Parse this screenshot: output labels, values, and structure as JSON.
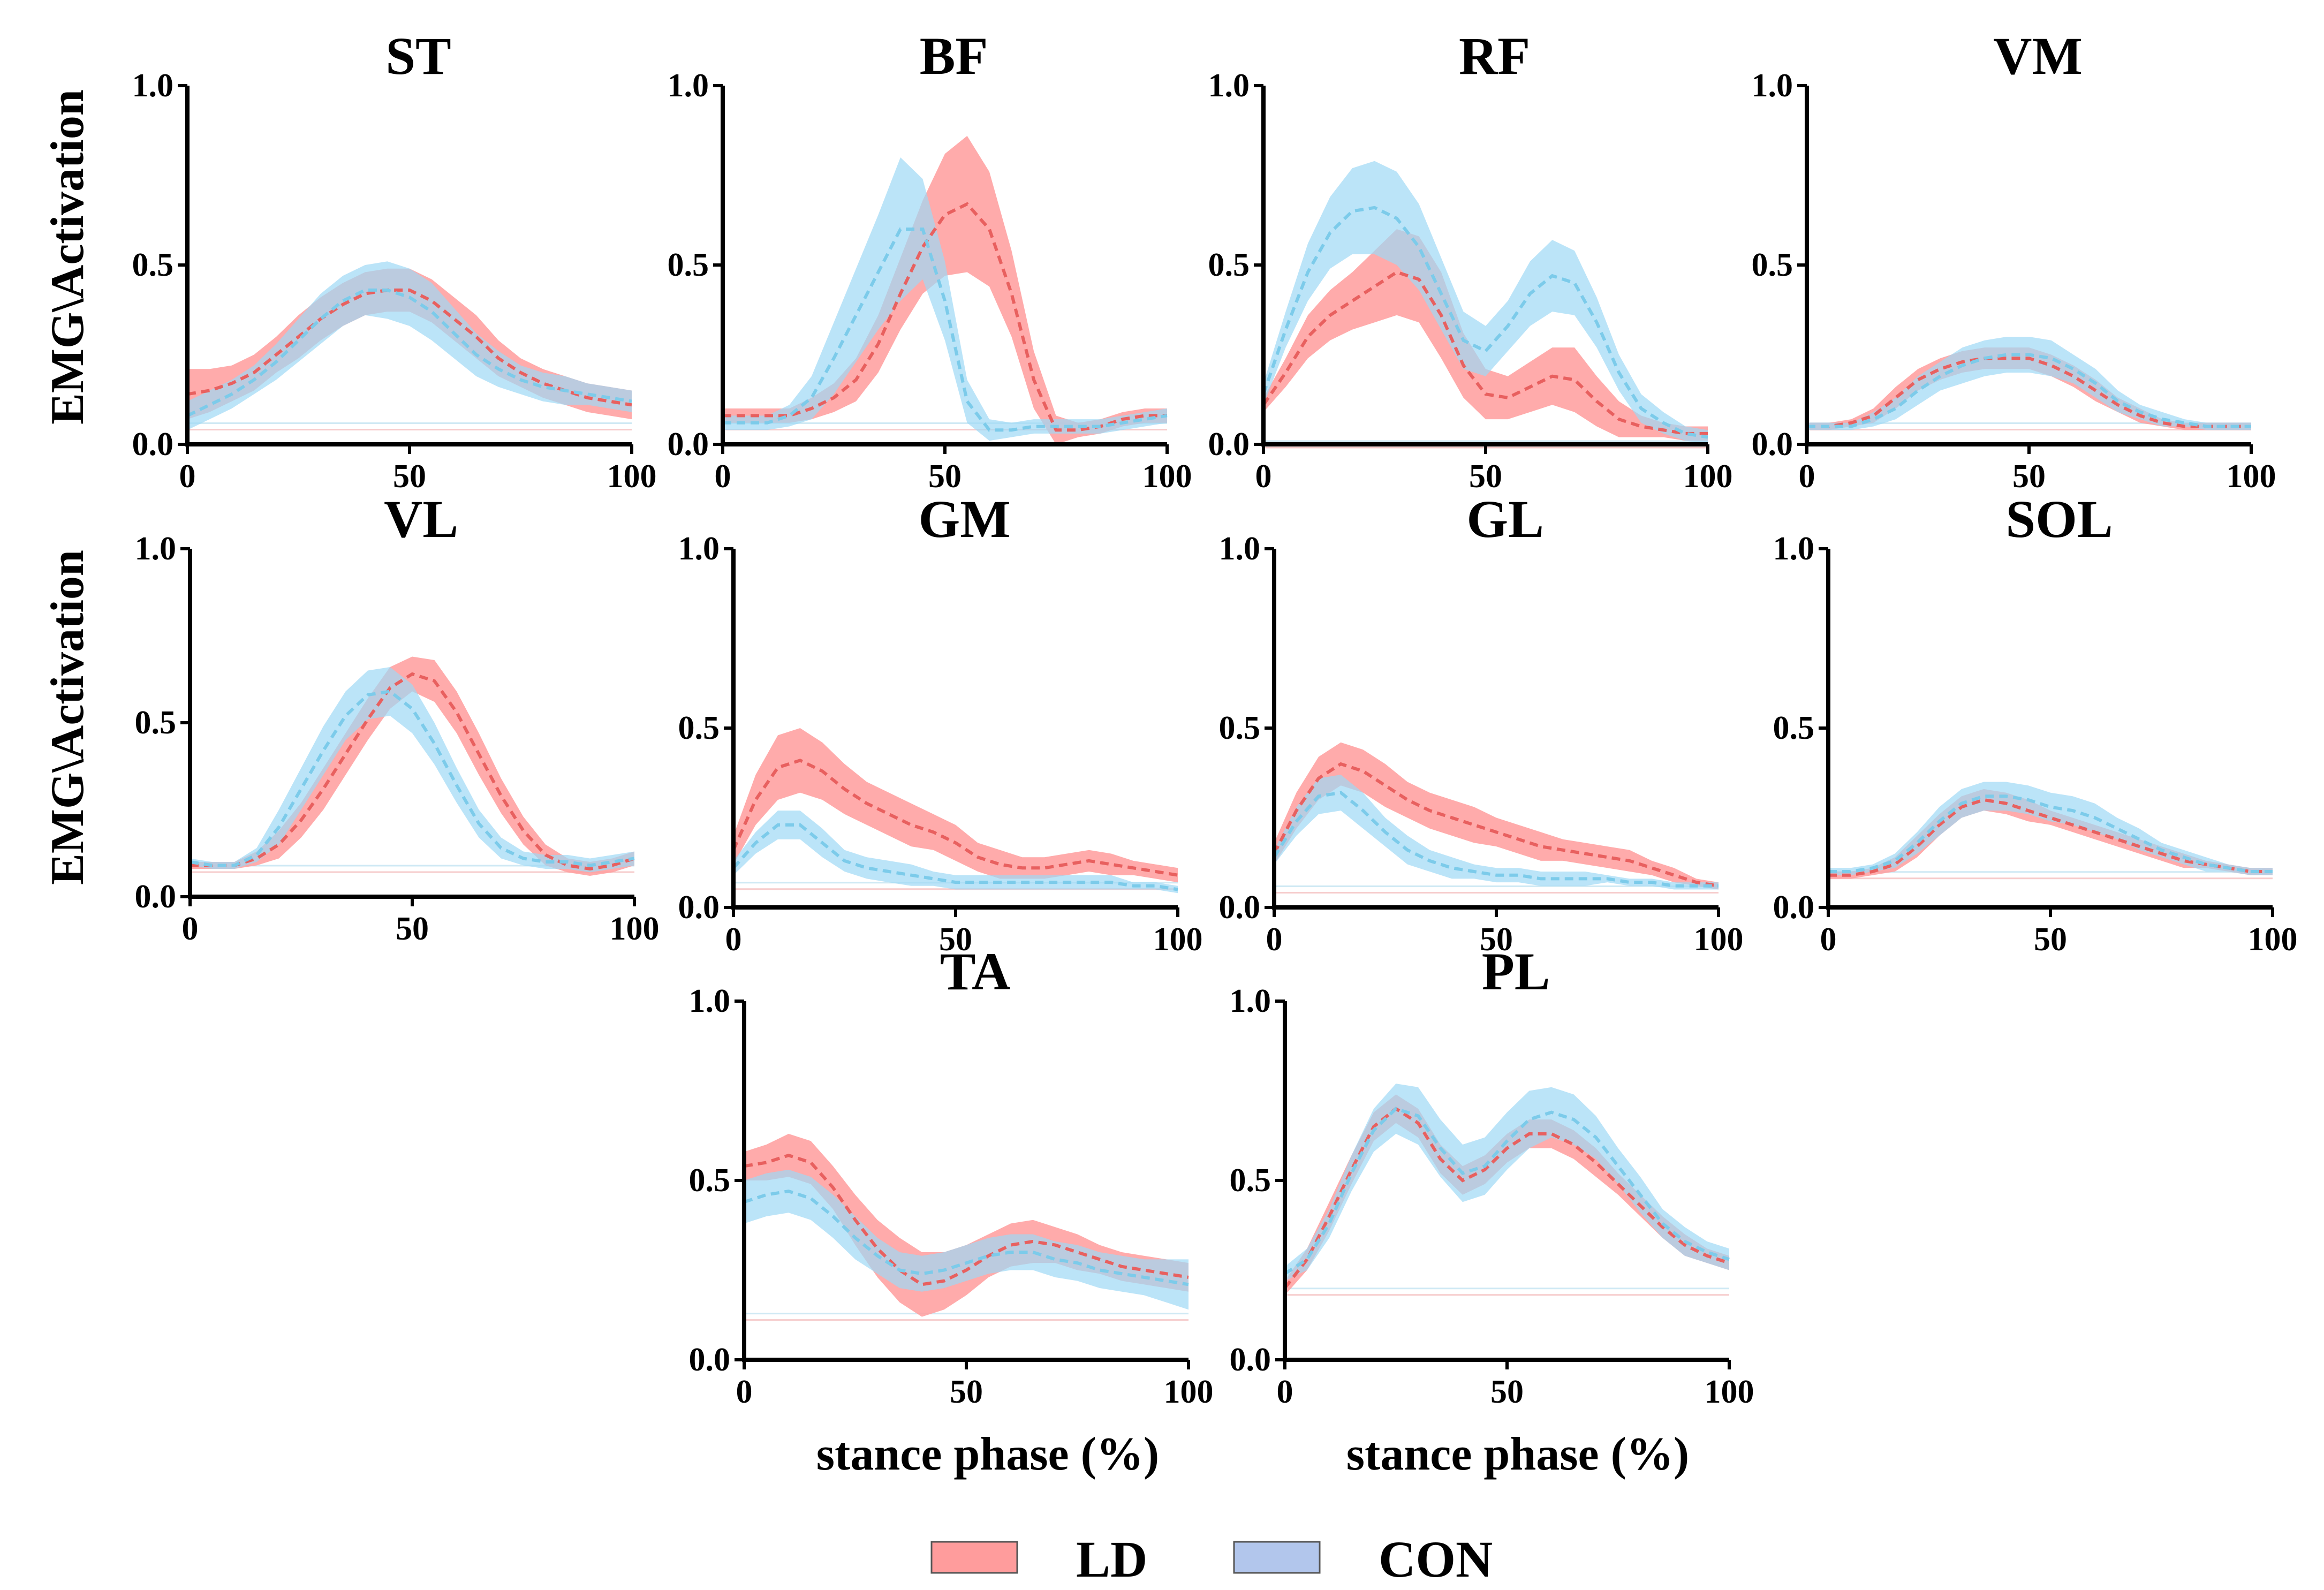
{
  "chart_data": {
    "type": "line",
    "y_axis_label": "EMG\\Activation",
    "x_axis_label": "stance phase (%)",
    "xlim": [
      0,
      100
    ],
    "ylim": [
      0,
      1
    ],
    "x_ticks": [
      "0",
      "50",
      "100"
    ],
    "y_ticks": [
      "0.0",
      "0.5",
      "1.0"
    ],
    "x": [
      0,
      5,
      10,
      15,
      20,
      25,
      30,
      35,
      40,
      45,
      50,
      55,
      60,
      65,
      70,
      75,
      80,
      85,
      90,
      95,
      100
    ],
    "legend": [
      {
        "label": "LD",
        "color": "#ff9c9c",
        "line_color": "#e8605f"
      },
      {
        "label": "CON",
        "color": "#b2c6ec",
        "line_color": "#7ccbea",
        "band_color": "#9ed8f5"
      }
    ],
    "panels": [
      {
        "title": "ST",
        "LD": {
          "mean": [
            0.14,
            0.15,
            0.17,
            0.2,
            0.25,
            0.3,
            0.35,
            0.39,
            0.42,
            0.43,
            0.43,
            0.4,
            0.35,
            0.3,
            0.24,
            0.2,
            0.17,
            0.15,
            0.13,
            0.12,
            0.11
          ],
          "sd": [
            0.07,
            0.06,
            0.05,
            0.05,
            0.05,
            0.06,
            0.06,
            0.06,
            0.06,
            0.06,
            0.06,
            0.06,
            0.06,
            0.06,
            0.05,
            0.04,
            0.04,
            0.04,
            0.04,
            0.04,
            0.04
          ]
        },
        "CON": {
          "mean": [
            0.08,
            0.11,
            0.14,
            0.18,
            0.23,
            0.29,
            0.35,
            0.4,
            0.43,
            0.43,
            0.41,
            0.37,
            0.31,
            0.25,
            0.21,
            0.18,
            0.16,
            0.15,
            0.14,
            0.13,
            0.12
          ],
          "sd": [
            0.04,
            0.04,
            0.04,
            0.04,
            0.05,
            0.06,
            0.07,
            0.07,
            0.07,
            0.08,
            0.08,
            0.08,
            0.07,
            0.06,
            0.05,
            0.04,
            0.04,
            0.04,
            0.03,
            0.03,
            0.03
          ]
        }
      },
      {
        "title": "BF",
        "LD": {
          "mean": [
            0.08,
            0.08,
            0.08,
            0.08,
            0.1,
            0.13,
            0.18,
            0.28,
            0.42,
            0.55,
            0.64,
            0.67,
            0.6,
            0.42,
            0.18,
            0.04,
            0.04,
            0.05,
            0.07,
            0.08,
            0.08
          ],
          "sd": [
            0.02,
            0.02,
            0.02,
            0.02,
            0.03,
            0.04,
            0.06,
            0.08,
            0.1,
            0.13,
            0.17,
            0.19,
            0.16,
            0.12,
            0.08,
            0.04,
            0.02,
            0.02,
            0.02,
            0.02,
            0.02
          ]
        },
        "CON": {
          "mean": [
            0.06,
            0.06,
            0.06,
            0.08,
            0.13,
            0.24,
            0.36,
            0.48,
            0.6,
            0.6,
            0.4,
            0.12,
            0.04,
            0.04,
            0.05,
            0.05,
            0.05,
            0.05,
            0.06,
            0.07,
            0.08
          ],
          "sd": [
            0.02,
            0.02,
            0.02,
            0.03,
            0.06,
            0.1,
            0.13,
            0.16,
            0.2,
            0.14,
            0.11,
            0.06,
            0.03,
            0.02,
            0.02,
            0.02,
            0.02,
            0.02,
            0.02,
            0.02,
            0.02
          ]
        }
      },
      {
        "title": "RF",
        "LD": {
          "mean": [
            0.11,
            0.2,
            0.3,
            0.36,
            0.4,
            0.44,
            0.48,
            0.46,
            0.36,
            0.22,
            0.14,
            0.13,
            0.16,
            0.19,
            0.18,
            0.12,
            0.07,
            0.05,
            0.04,
            0.03,
            0.03
          ],
          "sd": [
            0.02,
            0.04,
            0.06,
            0.07,
            0.08,
            0.1,
            0.12,
            0.12,
            0.12,
            0.09,
            0.07,
            0.06,
            0.07,
            0.08,
            0.09,
            0.07,
            0.05,
            0.03,
            0.02,
            0.02,
            0.02
          ]
        },
        "CON": {
          "mean": [
            0.14,
            0.32,
            0.48,
            0.59,
            0.65,
            0.66,
            0.63,
            0.55,
            0.42,
            0.29,
            0.26,
            0.33,
            0.42,
            0.47,
            0.45,
            0.34,
            0.2,
            0.1,
            0.06,
            0.03,
            0.02
          ],
          "sd": [
            0.03,
            0.05,
            0.08,
            0.1,
            0.12,
            0.13,
            0.13,
            0.12,
            0.1,
            0.08,
            0.07,
            0.07,
            0.09,
            0.1,
            0.09,
            0.07,
            0.05,
            0.04,
            0.03,
            0.02,
            0.02
          ]
        }
      },
      {
        "title": "VM",
        "LD": {
          "mean": [
            0.05,
            0.05,
            0.06,
            0.08,
            0.13,
            0.18,
            0.21,
            0.23,
            0.24,
            0.24,
            0.24,
            0.22,
            0.19,
            0.15,
            0.11,
            0.08,
            0.06,
            0.05,
            0.05,
            0.05,
            0.05
          ],
          "sd": [
            0.01,
            0.01,
            0.01,
            0.02,
            0.03,
            0.03,
            0.03,
            0.03,
            0.03,
            0.03,
            0.03,
            0.03,
            0.03,
            0.03,
            0.02,
            0.02,
            0.01,
            0.01,
            0.01,
            0.01,
            0.01
          ]
        },
        "CON": {
          "mean": [
            0.05,
            0.05,
            0.05,
            0.07,
            0.1,
            0.15,
            0.19,
            0.22,
            0.24,
            0.25,
            0.25,
            0.24,
            0.21,
            0.17,
            0.12,
            0.09,
            0.07,
            0.06,
            0.05,
            0.05,
            0.05
          ],
          "sd": [
            0.01,
            0.01,
            0.01,
            0.02,
            0.03,
            0.04,
            0.04,
            0.05,
            0.05,
            0.05,
            0.05,
            0.05,
            0.04,
            0.04,
            0.03,
            0.02,
            0.02,
            0.01,
            0.01,
            0.01,
            0.01
          ]
        }
      },
      {
        "title": "VL",
        "LD": {
          "mean": [
            0.09,
            0.09,
            0.09,
            0.11,
            0.15,
            0.22,
            0.31,
            0.41,
            0.51,
            0.6,
            0.64,
            0.62,
            0.53,
            0.41,
            0.29,
            0.19,
            0.12,
            0.09,
            0.08,
            0.09,
            0.11
          ],
          "sd": [
            0.01,
            0.01,
            0.01,
            0.02,
            0.04,
            0.05,
            0.06,
            0.06,
            0.06,
            0.06,
            0.05,
            0.06,
            0.06,
            0.06,
            0.05,
            0.04,
            0.03,
            0.02,
            0.02,
            0.02,
            0.02
          ]
        },
        "CON": {
          "mean": [
            0.1,
            0.09,
            0.09,
            0.12,
            0.2,
            0.31,
            0.42,
            0.52,
            0.58,
            0.59,
            0.54,
            0.44,
            0.32,
            0.21,
            0.14,
            0.11,
            0.1,
            0.1,
            0.09,
            0.1,
            0.11
          ],
          "sd": [
            0.01,
            0.01,
            0.01,
            0.02,
            0.05,
            0.06,
            0.07,
            0.07,
            0.07,
            0.07,
            0.07,
            0.06,
            0.05,
            0.04,
            0.03,
            0.02,
            0.02,
            0.02,
            0.02,
            0.02,
            0.02
          ]
        }
      },
      {
        "title": "GM",
        "LD": {
          "mean": [
            0.16,
            0.3,
            0.39,
            0.41,
            0.38,
            0.33,
            0.29,
            0.26,
            0.23,
            0.21,
            0.18,
            0.14,
            0.12,
            0.11,
            0.11,
            0.12,
            0.13,
            0.12,
            0.11,
            0.1,
            0.09
          ],
          "sd": [
            0.04,
            0.07,
            0.09,
            0.09,
            0.08,
            0.07,
            0.06,
            0.06,
            0.06,
            0.05,
            0.05,
            0.04,
            0.04,
            0.03,
            0.03,
            0.03,
            0.03,
            0.03,
            0.02,
            0.02,
            0.02
          ]
        },
        "CON": {
          "mean": [
            0.11,
            0.18,
            0.23,
            0.23,
            0.18,
            0.13,
            0.11,
            0.1,
            0.09,
            0.08,
            0.07,
            0.07,
            0.07,
            0.07,
            0.07,
            0.07,
            0.07,
            0.07,
            0.06,
            0.06,
            0.05
          ],
          "sd": [
            0.02,
            0.03,
            0.04,
            0.04,
            0.04,
            0.03,
            0.03,
            0.03,
            0.03,
            0.02,
            0.02,
            0.02,
            0.02,
            0.02,
            0.02,
            0.02,
            0.02,
            0.02,
            0.01,
            0.01,
            0.01
          ]
        }
      },
      {
        "title": "GL",
        "LD": {
          "mean": [
            0.15,
            0.27,
            0.36,
            0.4,
            0.38,
            0.34,
            0.3,
            0.27,
            0.25,
            0.23,
            0.21,
            0.19,
            0.17,
            0.16,
            0.15,
            0.14,
            0.13,
            0.11,
            0.09,
            0.07,
            0.06
          ],
          "sd": [
            0.03,
            0.05,
            0.06,
            0.06,
            0.06,
            0.06,
            0.05,
            0.05,
            0.05,
            0.05,
            0.04,
            0.04,
            0.04,
            0.03,
            0.03,
            0.03,
            0.03,
            0.02,
            0.02,
            0.01,
            0.01
          ]
        },
        "CON": {
          "mean": [
            0.14,
            0.24,
            0.31,
            0.32,
            0.27,
            0.21,
            0.16,
            0.13,
            0.11,
            0.1,
            0.09,
            0.09,
            0.08,
            0.08,
            0.08,
            0.08,
            0.07,
            0.07,
            0.06,
            0.06,
            0.06
          ],
          "sd": [
            0.02,
            0.04,
            0.05,
            0.05,
            0.05,
            0.04,
            0.04,
            0.03,
            0.03,
            0.02,
            0.02,
            0.02,
            0.02,
            0.02,
            0.02,
            0.01,
            0.01,
            0.01,
            0.01,
            0.01,
            0.01
          ]
        }
      },
      {
        "title": "SOL",
        "LD": {
          "mean": [
            0.09,
            0.09,
            0.1,
            0.12,
            0.17,
            0.23,
            0.28,
            0.3,
            0.29,
            0.27,
            0.25,
            0.23,
            0.21,
            0.19,
            0.17,
            0.15,
            0.13,
            0.12,
            0.11,
            0.1,
            0.1
          ],
          "sd": [
            0.01,
            0.01,
            0.01,
            0.02,
            0.03,
            0.03,
            0.03,
            0.03,
            0.03,
            0.03,
            0.02,
            0.02,
            0.02,
            0.02,
            0.02,
            0.02,
            0.02,
            0.01,
            0.01,
            0.01,
            0.01
          ]
        },
        "CON": {
          "mean": [
            0.1,
            0.1,
            0.11,
            0.13,
            0.18,
            0.24,
            0.29,
            0.31,
            0.31,
            0.3,
            0.28,
            0.27,
            0.25,
            0.22,
            0.19,
            0.16,
            0.14,
            0.12,
            0.11,
            0.1,
            0.1
          ],
          "sd": [
            0.01,
            0.01,
            0.01,
            0.02,
            0.03,
            0.04,
            0.04,
            0.04,
            0.04,
            0.04,
            0.04,
            0.04,
            0.04,
            0.03,
            0.03,
            0.02,
            0.02,
            0.02,
            0.01,
            0.01,
            0.01
          ]
        }
      },
      {
        "title": "TA",
        "LD": {
          "mean": [
            0.54,
            0.55,
            0.57,
            0.55,
            0.48,
            0.39,
            0.31,
            0.25,
            0.21,
            0.22,
            0.25,
            0.29,
            0.32,
            0.33,
            0.32,
            0.3,
            0.28,
            0.26,
            0.25,
            0.24,
            0.23
          ],
          "sd": [
            0.04,
            0.05,
            0.06,
            0.06,
            0.06,
            0.07,
            0.08,
            0.09,
            0.09,
            0.08,
            0.07,
            0.06,
            0.06,
            0.06,
            0.05,
            0.05,
            0.04,
            0.04,
            0.04,
            0.04,
            0.04
          ]
        },
        "CON": {
          "mean": [
            0.44,
            0.46,
            0.47,
            0.45,
            0.4,
            0.34,
            0.29,
            0.25,
            0.24,
            0.25,
            0.27,
            0.29,
            0.3,
            0.3,
            0.28,
            0.27,
            0.25,
            0.24,
            0.23,
            0.22,
            0.21
          ],
          "sd": [
            0.06,
            0.06,
            0.06,
            0.06,
            0.06,
            0.06,
            0.05,
            0.05,
            0.05,
            0.05,
            0.05,
            0.05,
            0.05,
            0.05,
            0.05,
            0.05,
            0.05,
            0.05,
            0.05,
            0.06,
            0.07
          ]
        }
      },
      {
        "title": "PL",
        "LD": {
          "mean": [
            0.2,
            0.28,
            0.4,
            0.53,
            0.65,
            0.7,
            0.66,
            0.56,
            0.5,
            0.53,
            0.59,
            0.63,
            0.63,
            0.6,
            0.55,
            0.49,
            0.43,
            0.37,
            0.32,
            0.29,
            0.27
          ],
          "sd": [
            0.02,
            0.03,
            0.04,
            0.04,
            0.04,
            0.04,
            0.04,
            0.04,
            0.04,
            0.04,
            0.04,
            0.04,
            0.04,
            0.04,
            0.04,
            0.03,
            0.03,
            0.03,
            0.03,
            0.02,
            0.02
          ]
        },
        "CON": {
          "mean": [
            0.24,
            0.28,
            0.38,
            0.52,
            0.64,
            0.7,
            0.68,
            0.59,
            0.52,
            0.54,
            0.61,
            0.67,
            0.69,
            0.67,
            0.62,
            0.54,
            0.46,
            0.38,
            0.33,
            0.3,
            0.28
          ],
          "sd": [
            0.02,
            0.03,
            0.04,
            0.05,
            0.06,
            0.07,
            0.08,
            0.08,
            0.08,
            0.08,
            0.08,
            0.08,
            0.07,
            0.07,
            0.06,
            0.05,
            0.05,
            0.04,
            0.04,
            0.03,
            0.03
          ]
        }
      }
    ]
  }
}
